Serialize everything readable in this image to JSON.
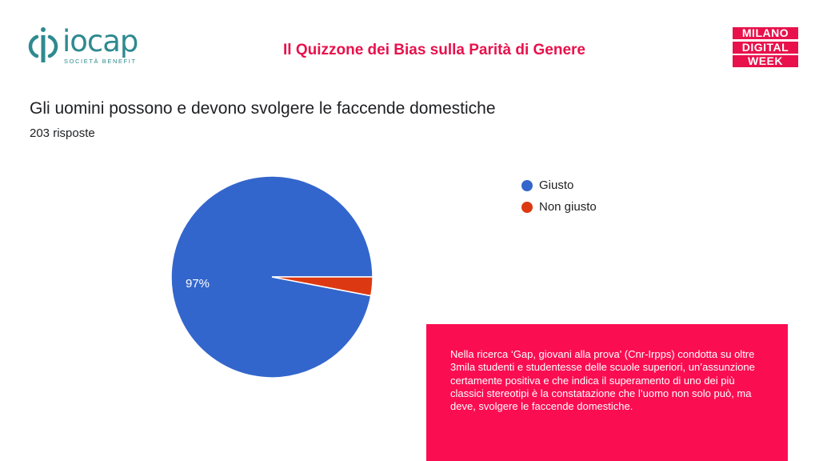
{
  "header": {
    "logo_left_text": "iocap",
    "logo_left_sub": "SOCIETÀ BENEFIT",
    "title": "Il Quizzone dei Bias sulla Parità di Genere",
    "logo_right_lines": [
      "MILANO",
      "DIGITAL",
      "WEEK"
    ]
  },
  "colors": {
    "accent": "#e8114b",
    "note_bg": "#fb0d52",
    "logo_teal": "#2f8a8f",
    "series_giusto": "#3366cc",
    "series_non_giusto": "#dc3912"
  },
  "survey": {
    "question": "Gli uomini possono e devono svolgere le faccende domestiche",
    "responses": "203 risposte"
  },
  "chart_data": {
    "type": "pie",
    "categories": [
      "Giusto",
      "Non giusto"
    ],
    "values": [
      97,
      3
    ],
    "colors": [
      "#3366cc",
      "#dc3912"
    ],
    "data_labels": [
      "97%",
      ""
    ],
    "legend": {
      "placement": "right",
      "entries": [
        "Giusto",
        "Non giusto"
      ]
    }
  },
  "note": {
    "text": "Nella ricerca ‘Gap, giovani alla prova' (Cnr-Irpps) condotta su oltre 3mila studenti e studentesse delle scuole superiori, un’assunzione certamente positiva e che indica il superamento di uno dei più classici stereotipi è la constatazione che l’uomo non solo può, ma deve, svolgere le faccende domestiche."
  }
}
